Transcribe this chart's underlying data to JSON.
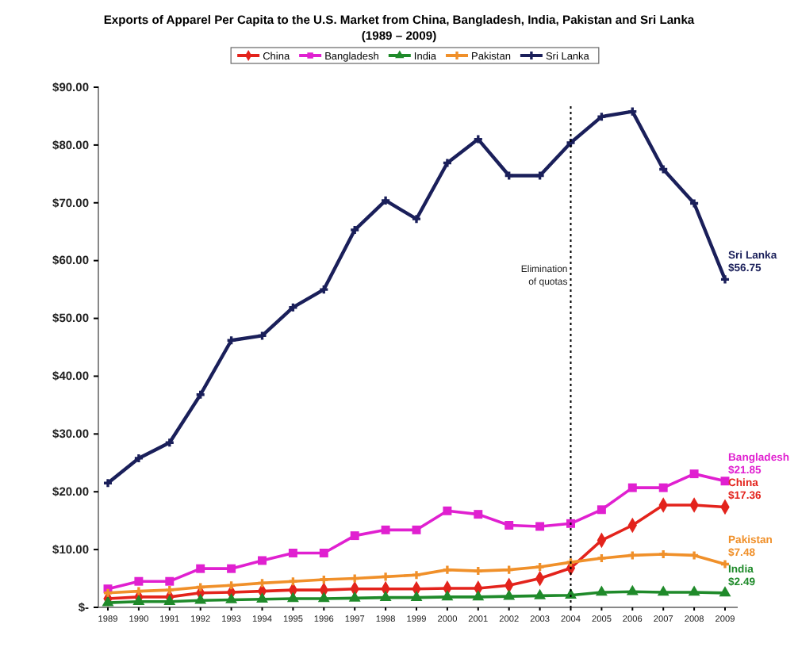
{
  "chart_data": {
    "type": "line",
    "title": "Exports of Apparel Per Capita to the U.S. Market from China, Bangladesh, India, Pakistan and Sri Lanka",
    "subtitle": "(1989 – 2009)",
    "categories": [
      "1989",
      "1990",
      "1991",
      "1992",
      "1993",
      "1994",
      "1995",
      "1996",
      "1997",
      "1998",
      "1999",
      "2000",
      "2001",
      "2002",
      "2003",
      "2004",
      "2005",
      "2006",
      "2007",
      "2008",
      "2009"
    ],
    "series": [
      {
        "name": "China",
        "color": "#e3231c",
        "marker": "diamond",
        "values": [
          1.5,
          1.8,
          1.8,
          2.5,
          2.6,
          2.8,
          3,
          3,
          3.2,
          3.2,
          3.2,
          3.3,
          3.3,
          3.8,
          5,
          6.8,
          11.6,
          14.2,
          17.7,
          17.7,
          17.36
        ],
        "value_labels": [
          null,
          null,
          null,
          null,
          null,
          null,
          null,
          null,
          null,
          null,
          null,
          null,
          null,
          null,
          null,
          null,
          null,
          null,
          null,
          null,
          "$17.36"
        ]
      },
      {
        "name": "Bangladesh",
        "color": "#e020d0",
        "marker": "square",
        "values": [
          3.2,
          4.5,
          4.5,
          6.7,
          6.7,
          8.1,
          9.4,
          9.4,
          12.4,
          13.4,
          13.4,
          16.7,
          16.1,
          14.2,
          14,
          14.5,
          16.9,
          20.7,
          20.7,
          23.1,
          21.85
        ],
        "value_labels": [
          null,
          null,
          null,
          null,
          null,
          null,
          null,
          null,
          null,
          null,
          null,
          null,
          null,
          null,
          null,
          null,
          null,
          null,
          null,
          null,
          "$21.85"
        ]
      },
      {
        "name": "India",
        "color": "#1f8a2a",
        "marker": "triangle",
        "values": [
          0.8,
          1,
          1,
          1.2,
          1.3,
          1.4,
          1.5,
          1.5,
          1.6,
          1.7,
          1.7,
          1.8,
          1.8,
          1.9,
          2,
          2.1,
          2.6,
          2.7,
          2.6,
          2.6,
          2.49
        ],
        "value_labels": [
          null,
          null,
          null,
          null,
          null,
          null,
          null,
          null,
          null,
          null,
          null,
          null,
          null,
          null,
          null,
          null,
          null,
          null,
          null,
          null,
          "$2.49"
        ]
      },
      {
        "name": "Pakistan",
        "color": "#f0902a",
        "marker": "cross",
        "values": [
          2.5,
          2.8,
          3,
          3.5,
          3.8,
          4.2,
          4.5,
          4.8,
          5,
          5.3,
          5.6,
          6.5,
          6.3,
          6.5,
          7,
          7.8,
          8.5,
          9,
          9.2,
          9,
          7.48
        ],
        "value_labels": [
          null,
          null,
          null,
          null,
          null,
          null,
          null,
          null,
          null,
          null,
          null,
          null,
          null,
          null,
          null,
          null,
          null,
          null,
          null,
          null,
          "$7.48"
        ]
      },
      {
        "name": "Sri Lanka",
        "color": "#1a1f5a",
        "marker": "cross",
        "values": [
          21.5,
          25.8,
          28.5,
          36.8,
          46.2,
          47,
          51.9,
          55,
          65.3,
          70.4,
          67.2,
          76.9,
          81,
          74.7,
          74.7,
          80.4,
          84.9,
          85.8,
          75.8,
          69.9,
          56.75
        ],
        "value_labels": [
          null,
          null,
          null,
          null,
          null,
          null,
          null,
          null,
          null,
          null,
          null,
          null,
          null,
          null,
          null,
          null,
          null,
          null,
          null,
          null,
          "$56.75"
        ]
      }
    ],
    "ylim": [
      0,
      90
    ],
    "yticks": [
      {
        "value": 0,
        "label": "$-"
      },
      {
        "value": 10,
        "label": "$10.00"
      },
      {
        "value": 20,
        "label": "$20.00"
      },
      {
        "value": 30,
        "label": "$30.00"
      },
      {
        "value": 40,
        "label": "$40.00"
      },
      {
        "value": 50,
        "label": "$50.00"
      },
      {
        "value": 60,
        "label": "$60.00"
      },
      {
        "value": 70,
        "label": "$70.00"
      },
      {
        "value": 80,
        "label": "$80.00"
      },
      {
        "value": 90,
        "label": "$90.00"
      }
    ],
    "ref_lines": [
      {
        "axis": "x",
        "value": "2004",
        "label": "Elimination of quotas",
        "line_style": "dotted",
        "color": "#000000"
      }
    ],
    "legend": "top",
    "grid": false,
    "line_style": "solid"
  }
}
